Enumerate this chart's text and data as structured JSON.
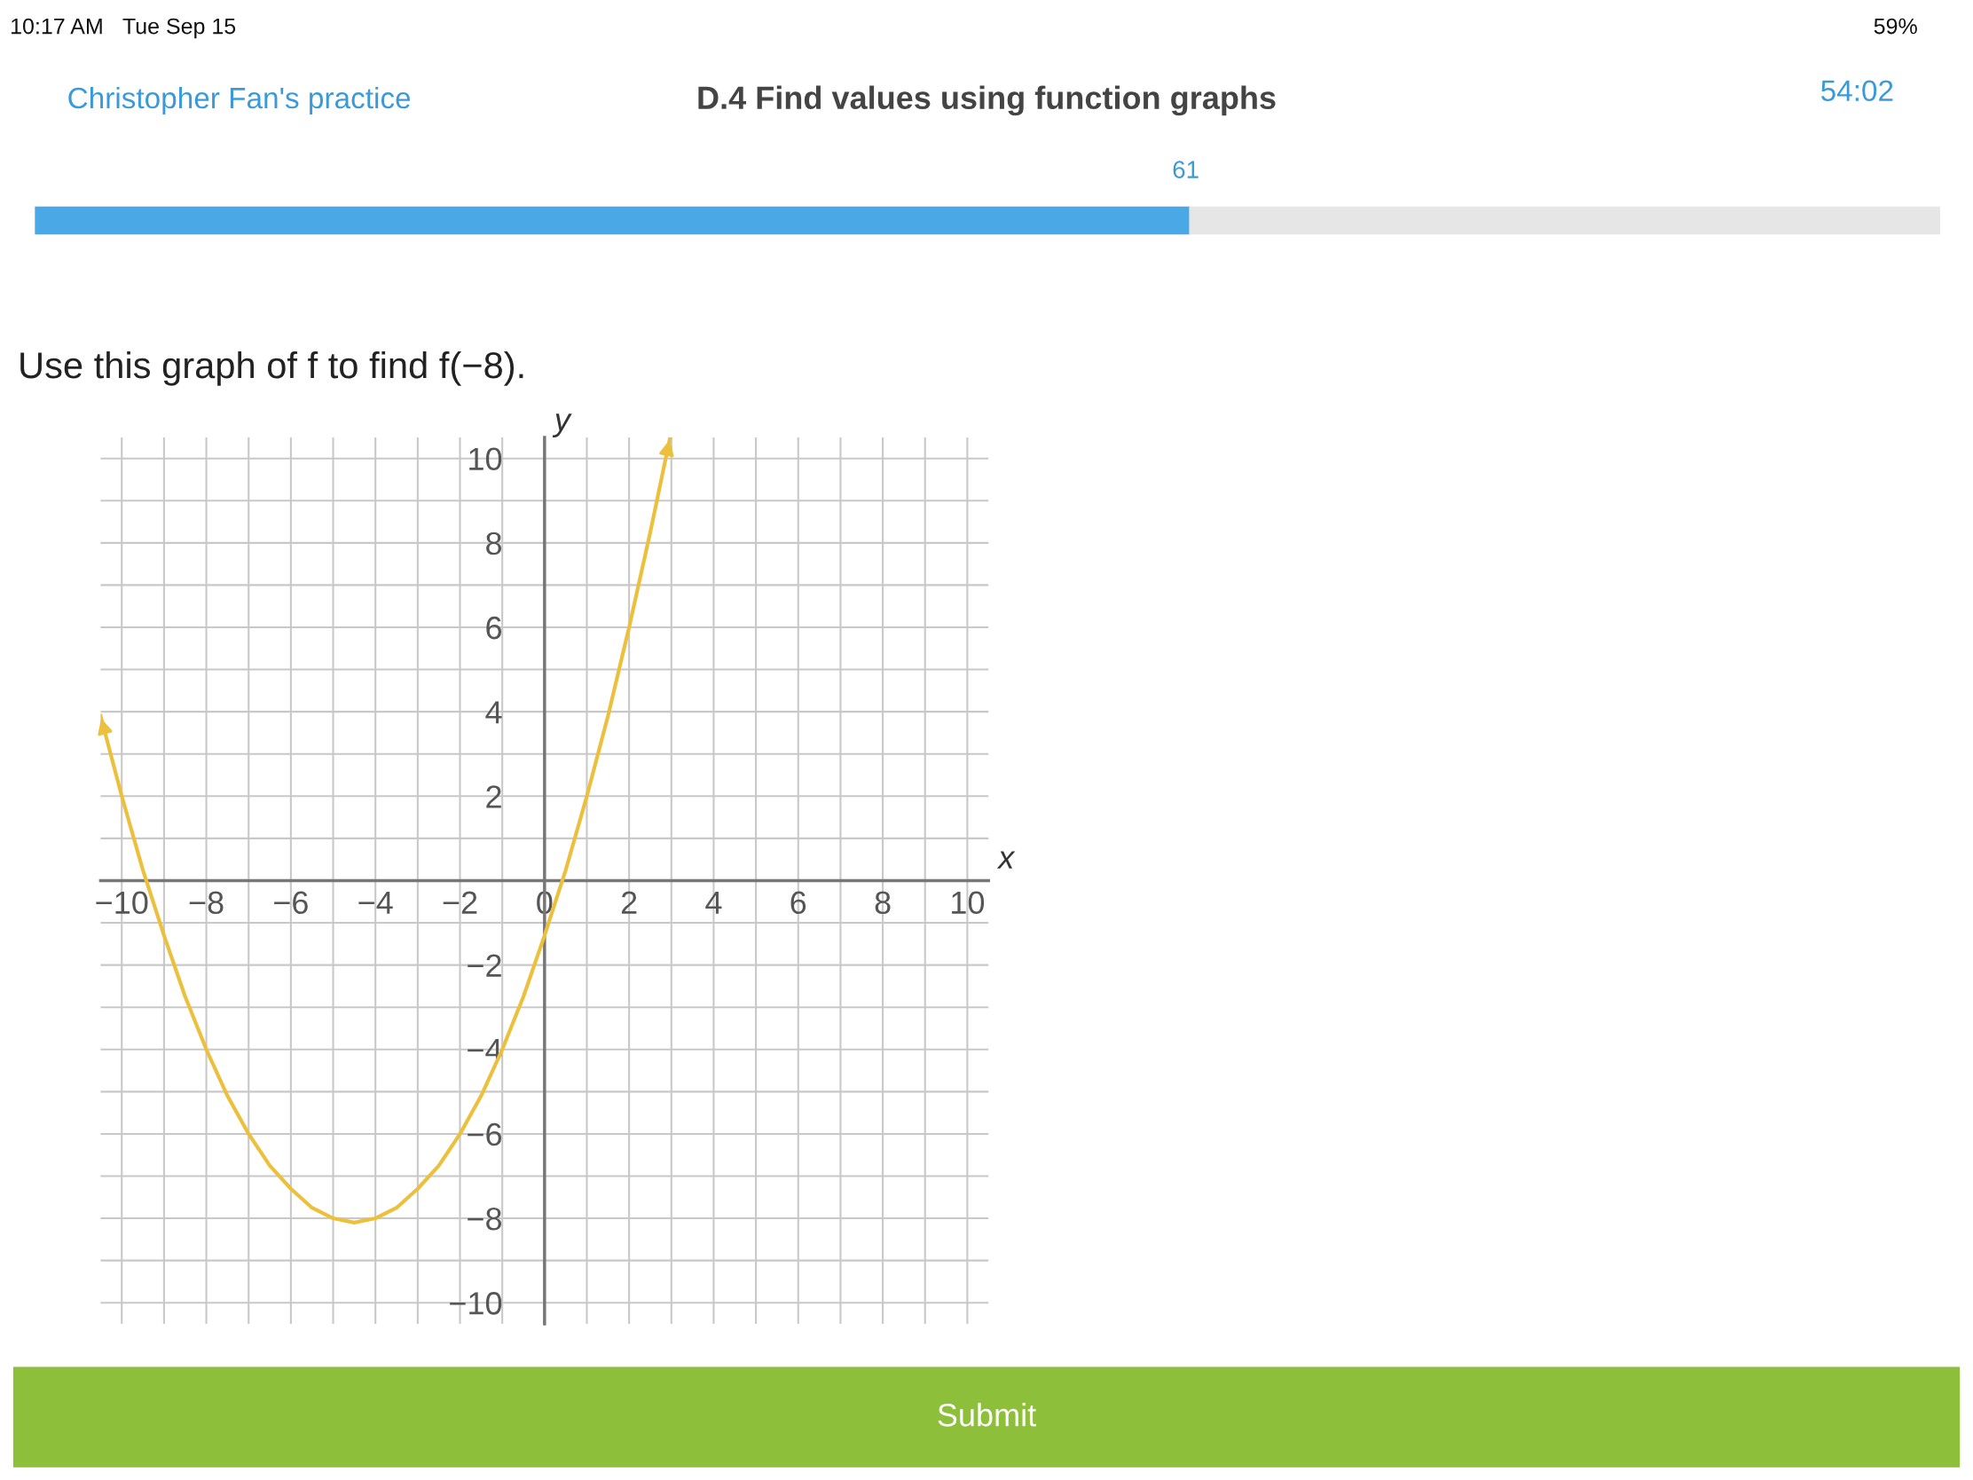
{
  "chart_data": {
    "type": "line",
    "title": "Use this graph of f to find f(−8).",
    "xlabel": "x",
    "ylabel": "y",
    "x": [
      -10.5,
      -10,
      -9.5,
      -9,
      -8.5,
      -8,
      -7.5,
      -7,
      -6.5,
      -6,
      -5.5,
      -5,
      -4.5,
      -4,
      -3.5,
      -3,
      -2.5,
      -2,
      -1.5,
      -1,
      -0.5,
      0,
      0.5,
      1,
      1.5,
      2,
      2.5,
      2.97
    ],
    "series": [
      {
        "color": "#ecc03c",
        "values": [
          3.9,
          2,
          0.25,
          -1.3,
          -2.75,
          -4,
          -5.1,
          -6,
          -6.75,
          -7.3,
          -7.75,
          -8,
          -8.1,
          -8,
          -7.75,
          -7.3,
          -6.75,
          -6,
          -5.1,
          -4,
          -2.75,
          -1.3,
          0.25,
          2,
          3.9,
          6,
          8.25,
          10.5
        ]
      }
    ],
    "xlim": [
      -10.5,
      10.5
    ],
    "ylim": [
      -10.5,
      10.5
    ],
    "xticks": [
      {
        "value": -10,
        "label": "−10"
      },
      {
        "value": -9,
        "label": null
      },
      {
        "value": -8,
        "label": "−8"
      },
      {
        "value": -7,
        "label": null
      },
      {
        "value": -6,
        "label": "−6"
      },
      {
        "value": -5,
        "label": null
      },
      {
        "value": -4,
        "label": "−4"
      },
      {
        "value": -3,
        "label": null
      },
      {
        "value": -2,
        "label": "−2"
      },
      {
        "value": -1,
        "label": null
      },
      0,
      {
        "value": 1,
        "label": null
      },
      2,
      {
        "value": 3,
        "label": null
      },
      4,
      {
        "value": 5,
        "label": null
      },
      6,
      {
        "value": 7,
        "label": null
      },
      8,
      {
        "value": 9,
        "label": null
      },
      10
    ],
    "yticks": [
      {
        "value": -10,
        "label": "−10"
      },
      {
        "value": -9,
        "label": null
      },
      {
        "value": -8,
        "label": "−8"
      },
      {
        "value": -7,
        "label": null
      },
      {
        "value": -6,
        "label": "−6"
      },
      {
        "value": -5,
        "label": null
      },
      {
        "value": -4,
        "label": "−4"
      },
      {
        "value": -3,
        "label": null
      },
      {
        "value": -2,
        "label": "−2"
      },
      {
        "value": -1,
        "label": null
      },
      {
        "value": 1,
        "label": null
      },
      2,
      {
        "value": 3,
        "label": null
      },
      4,
      {
        "value": 5,
        "label": null
      },
      6,
      {
        "value": 7,
        "label": null
      },
      8,
      {
        "value": 9,
        "label": null
      },
      10
    ],
    "grid": true,
    "marker": "none",
    "line_style": "solid",
    "annotations": [
      "10:17 AM",
      "Tue Sep 15",
      "59%",
      "Christopher Fan's practice",
      "D.4 Find values using function graphs",
      "54:02",
      "61",
      "Submit"
    ]
  }
}
